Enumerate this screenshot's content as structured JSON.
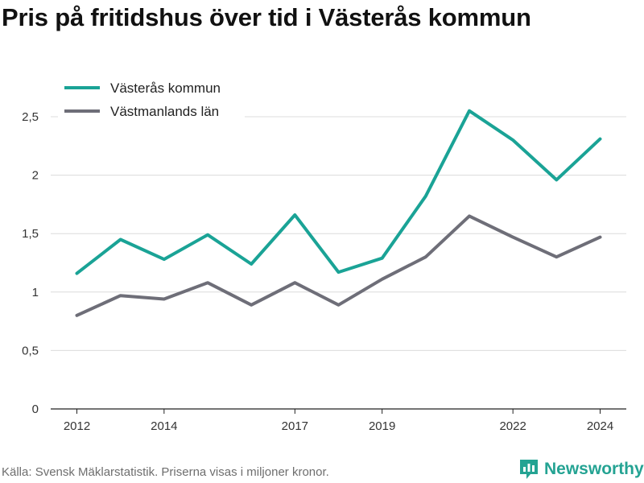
{
  "title": "Pris på fritidshus över tid i Västerås kommun",
  "source": "Källa: Svensk Mäklarstatistik. Priserna visas i miljoner kronor.",
  "brand": {
    "name": "Newsworthy",
    "color": "#24a393"
  },
  "chart_data": {
    "type": "line",
    "title": "Pris på fritidshus över tid i Västerås kommun",
    "x": [
      2012,
      2013,
      2014,
      2015,
      2016,
      2017,
      2018,
      2019,
      2020,
      2021,
      2022,
      2023,
      2024
    ],
    "x_tick_values": [
      2012,
      2014,
      2017,
      2019,
      2022,
      2024
    ],
    "x_tick_labels": [
      "2012",
      "2014",
      "2017",
      "2019",
      "2022",
      "2024"
    ],
    "y_ticks": [
      0,
      0.5,
      1,
      1.5,
      2,
      2.5
    ],
    "y_tick_labels": [
      "0",
      "0,5",
      "1",
      "1,5",
      "2",
      "2,5"
    ],
    "ylim": [
      0,
      2.5
    ],
    "grid": true,
    "legend_position": "top-left",
    "series": [
      {
        "name": "Västerås kommun",
        "color": "#1aa396",
        "values": [
          1.16,
          1.45,
          1.28,
          1.49,
          1.24,
          1.66,
          1.17,
          1.29,
          1.82,
          2.55,
          2.3,
          1.96,
          2.31
        ]
      },
      {
        "name": "Västmanlands län",
        "color": "#6e6e78",
        "values": [
          0.8,
          0.97,
          0.94,
          1.08,
          0.89,
          1.08,
          0.89,
          1.11,
          1.3,
          1.65,
          1.47,
          1.3,
          1.47
        ]
      }
    ]
  }
}
